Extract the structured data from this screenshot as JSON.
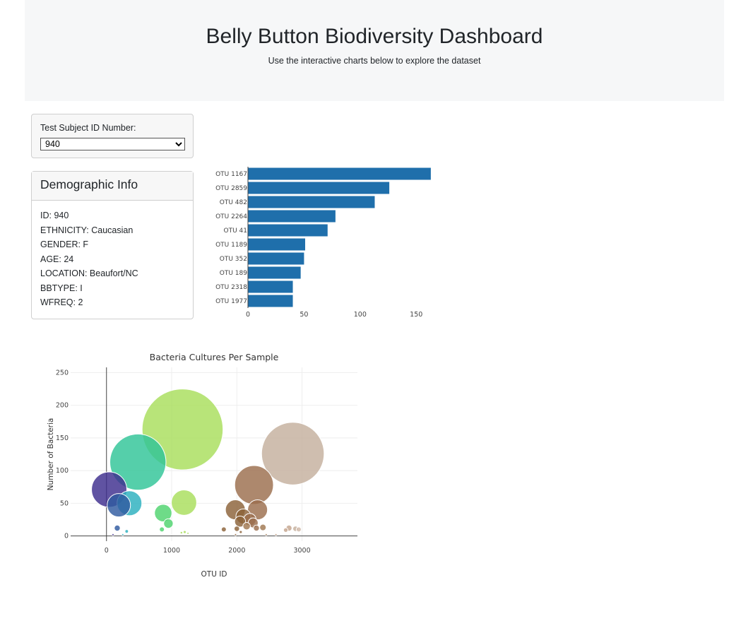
{
  "header": {
    "title": "Belly Button Biodiversity Dashboard",
    "subtitle": "Use the interactive charts below to explore the dataset"
  },
  "selector": {
    "label": "Test Subject ID Number:",
    "selected": "940"
  },
  "demographics": {
    "title": "Demographic Info",
    "lines": [
      "ID: 940",
      "ETHNICITY: Caucasian",
      "GENDER: F",
      "AGE: 24",
      "LOCATION: Beaufort/NC",
      "BBTYPE: I",
      "WFREQ: 2"
    ]
  },
  "colors": {
    "bar": "#1f6fab",
    "bubble_outline": "#ffffff"
  },
  "chart_data": [
    {
      "type": "bar",
      "orientation": "horizontal",
      "categories": [
        "OTU 1167",
        "OTU 2859",
        "OTU 482",
        "OTU 2264",
        "OTU 41",
        "OTU 1189",
        "OTU 352",
        "OTU 189",
        "OTU 2318",
        "OTU 1977"
      ],
      "values": [
        163,
        126,
        113,
        78,
        71,
        51,
        50,
        47,
        40,
        40
      ],
      "xlim": [
        0,
        170
      ],
      "xticks": [
        0,
        50,
        100,
        150
      ],
      "title": "",
      "xlabel": "",
      "ylabel": ""
    },
    {
      "type": "scatter",
      "variant": "bubble",
      "title": "Bacteria Cultures Per Sample",
      "xlabel": "OTU ID",
      "ylabel": "Number of Bacteria",
      "xlim": [
        -550,
        3850
      ],
      "ylim": [
        -8,
        258
      ],
      "xticks": [
        0,
        1000,
        2000,
        3000
      ],
      "yticks": [
        0,
        50,
        100,
        150,
        200,
        250
      ],
      "points": [
        {
          "x": 1167,
          "y": 163,
          "color": "#a8de5c"
        },
        {
          "x": 2859,
          "y": 126,
          "color": "#c5b09e"
        },
        {
          "x": 482,
          "y": 113,
          "color": "#2fc597"
        },
        {
          "x": 2264,
          "y": 78,
          "color": "#9b6e4d"
        },
        {
          "x": 41,
          "y": 71,
          "color": "#3d2d8e"
        },
        {
          "x": 1189,
          "y": 51,
          "color": "#a8de5c"
        },
        {
          "x": 352,
          "y": 50,
          "color": "#2bb0be"
        },
        {
          "x": 189,
          "y": 47,
          "color": "#2f5aa0"
        },
        {
          "x": 2318,
          "y": 40,
          "color": "#9b6e4d"
        },
        {
          "x": 1977,
          "y": 40,
          "color": "#8b6238"
        },
        {
          "x": 870,
          "y": 35,
          "color": "#4ed36e"
        },
        {
          "x": 2100,
          "y": 30,
          "color": "#8b6238"
        },
        {
          "x": 2200,
          "y": 25,
          "color": "#9b6e4d"
        },
        {
          "x": 2050,
          "y": 22,
          "color": "#8b6238"
        },
        {
          "x": 2250,
          "y": 20,
          "color": "#9b6e4d"
        },
        {
          "x": 950,
          "y": 19,
          "color": "#4ed36e"
        },
        {
          "x": 2150,
          "y": 15,
          "color": "#a07850"
        },
        {
          "x": 2400,
          "y": 13,
          "color": "#a07850"
        },
        {
          "x": 2800,
          "y": 12,
          "color": "#c5a58e"
        },
        {
          "x": 2900,
          "y": 11,
          "color": "#c5b09e"
        },
        {
          "x": 1800,
          "y": 10,
          "color": "#8b6238"
        },
        {
          "x": 2000,
          "y": 11,
          "color": "#8b6238"
        },
        {
          "x": 2300,
          "y": 12,
          "color": "#9b6e4d"
        },
        {
          "x": 2950,
          "y": 10,
          "color": "#d0b8a8"
        },
        {
          "x": 2750,
          "y": 9,
          "color": "#c5a58e"
        },
        {
          "x": 165,
          "y": 12,
          "color": "#2f5aa0"
        },
        {
          "x": 850,
          "y": 10,
          "color": "#4ed36e"
        },
        {
          "x": 310,
          "y": 7,
          "color": "#2bb0be"
        },
        {
          "x": 1200,
          "y": 6,
          "color": "#a8de5c"
        },
        {
          "x": 1250,
          "y": 4,
          "color": "#a8de5c"
        },
        {
          "x": 1150,
          "y": 5,
          "color": "#a8de5c"
        },
        {
          "x": 2060,
          "y": 6,
          "color": "#8b6238"
        },
        {
          "x": 100,
          "y": 2,
          "color": "#3d2d8e"
        },
        {
          "x": 250,
          "y": 2,
          "color": "#2bb0be"
        },
        {
          "x": 2600,
          "y": 2,
          "color": "#b89070"
        },
        {
          "x": 2450,
          "y": 2,
          "color": "#a07850"
        },
        {
          "x": 1980,
          "y": 2,
          "color": "#8b6238"
        }
      ]
    }
  ]
}
